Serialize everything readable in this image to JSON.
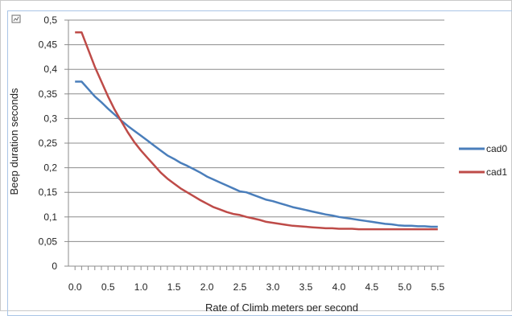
{
  "chart_data": {
    "type": "line",
    "title": "",
    "xlabel": "Rate of Climb meters per second",
    "ylabel": "Beep duration seconds",
    "xlim": [
      -0.1,
      5.6
    ],
    "ylim": [
      0,
      0.5
    ],
    "x_ticks": [
      "0.0",
      "0.5",
      "1.0",
      "1.5",
      "2.0",
      "2.5",
      "3.0",
      "3.5",
      "4.0",
      "4.5",
      "5.0",
      "5.5"
    ],
    "x_tick_values": [
      0,
      0.5,
      1,
      1.5,
      2,
      2.5,
      3,
      3.5,
      4,
      4.5,
      5,
      5.5
    ],
    "y_ticks": [
      "0",
      "0,05",
      "0,1",
      "0,15",
      "0,2",
      "0,25",
      "0,3",
      "0,35",
      "0,4",
      "0,45",
      "0,5"
    ],
    "y_tick_values": [
      0,
      0.05,
      0.1,
      0.15,
      0.2,
      0.25,
      0.3,
      0.35,
      0.4,
      0.45,
      0.5
    ],
    "grid": "horizontal",
    "legend_position": "right",
    "series": [
      {
        "name": "cad0",
        "color": "#4a7ebb",
        "x": [
          0,
          0.1,
          0.2,
          0.3,
          0.4,
          0.5,
          0.6,
          0.7,
          0.8,
          0.9,
          1.0,
          1.1,
          1.2,
          1.3,
          1.4,
          1.5,
          1.6,
          1.7,
          1.8,
          1.9,
          2.0,
          2.1,
          2.2,
          2.3,
          2.4,
          2.5,
          2.6,
          2.7,
          2.8,
          2.9,
          3.0,
          3.1,
          3.2,
          3.3,
          3.4,
          3.5,
          3.6,
          3.7,
          3.8,
          3.9,
          4.0,
          4.1,
          4.2,
          4.3,
          4.4,
          4.5,
          4.6,
          4.7,
          4.8,
          4.9,
          5.0,
          5.1,
          5.2,
          5.3,
          5.4,
          5.5
        ],
        "y": [
          0.375,
          0.375,
          0.36,
          0.345,
          0.333,
          0.32,
          0.308,
          0.296,
          0.285,
          0.275,
          0.265,
          0.255,
          0.245,
          0.235,
          0.225,
          0.218,
          0.21,
          0.204,
          0.197,
          0.19,
          0.182,
          0.176,
          0.17,
          0.164,
          0.158,
          0.152,
          0.15,
          0.145,
          0.14,
          0.135,
          0.132,
          0.128,
          0.124,
          0.12,
          0.117,
          0.114,
          0.111,
          0.108,
          0.105,
          0.103,
          0.1,
          0.098,
          0.096,
          0.094,
          0.092,
          0.09,
          0.088,
          0.086,
          0.085,
          0.083,
          0.082,
          0.082,
          0.081,
          0.081,
          0.08,
          0.08
        ]
      },
      {
        "name": "cad1",
        "color": "#be4b48",
        "x": [
          0,
          0.1,
          0.2,
          0.3,
          0.4,
          0.5,
          0.6,
          0.7,
          0.8,
          0.9,
          1.0,
          1.1,
          1.2,
          1.3,
          1.4,
          1.5,
          1.6,
          1.7,
          1.8,
          1.9,
          2.0,
          2.1,
          2.2,
          2.3,
          2.4,
          2.5,
          2.6,
          2.7,
          2.8,
          2.9,
          3.0,
          3.1,
          3.2,
          3.3,
          3.4,
          3.5,
          3.6,
          3.7,
          3.8,
          3.9,
          4.0,
          4.1,
          4.2,
          4.3,
          4.4,
          4.5,
          4.6,
          4.7,
          4.8,
          4.9,
          5.0,
          5.1,
          5.2,
          5.3,
          5.4,
          5.5
        ],
        "y": [
          0.475,
          0.475,
          0.44,
          0.405,
          0.375,
          0.345,
          0.318,
          0.295,
          0.272,
          0.252,
          0.235,
          0.22,
          0.205,
          0.19,
          0.178,
          0.168,
          0.158,
          0.15,
          0.142,
          0.134,
          0.127,
          0.12,
          0.115,
          0.11,
          0.106,
          0.104,
          0.1,
          0.097,
          0.094,
          0.09,
          0.088,
          0.086,
          0.084,
          0.082,
          0.081,
          0.08,
          0.079,
          0.078,
          0.077,
          0.077,
          0.076,
          0.076,
          0.076,
          0.075,
          0.075,
          0.075,
          0.075,
          0.075,
          0.075,
          0.075,
          0.075,
          0.075,
          0.075,
          0.075,
          0.075,
          0.075
        ]
      }
    ]
  }
}
